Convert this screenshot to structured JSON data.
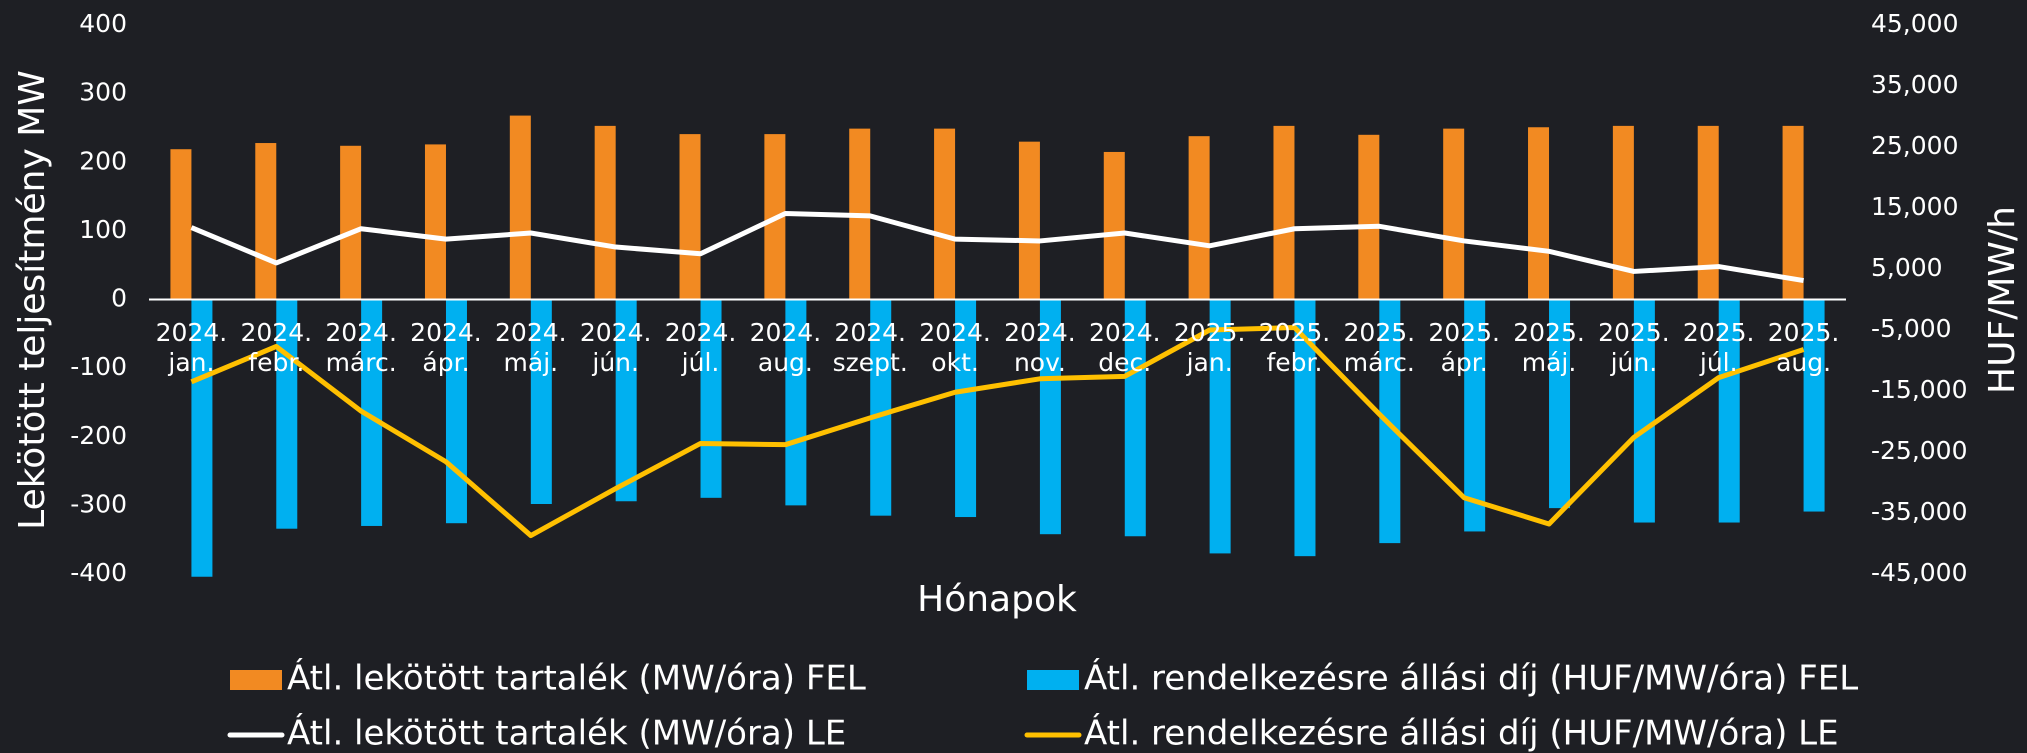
{
  "chart_data": {
    "type": "bar-line",
    "x_label": "Hónapok",
    "y_label": "Lekötött teljesítmény MW",
    "y2_label": "HUF/MW/h",
    "categories": [
      "2024. jan.",
      "2024. febr.",
      "2024. márc.",
      "2024. ápr.",
      "2024. máj.",
      "2024. jún.",
      "2024. júl.",
      "2024. aug.",
      "2024. szept.",
      "2024. okt.",
      "2024. nov.",
      "2024. dec.",
      "2025. jan.",
      "2025. febr.",
      "2025. márc.",
      "2025. ápr.",
      "2025. máj.",
      "2025. jún.",
      "2025. júl.",
      "2025. aug."
    ],
    "ylim": [
      -400,
      400
    ],
    "yticks": [
      -400,
      -300,
      -200,
      -100,
      0,
      100,
      200,
      300,
      400
    ],
    "y2lim": [
      -45000,
      45000
    ],
    "y2ticks": [
      {
        "value": -45000,
        "label": "-45,000"
      },
      {
        "value": -35000,
        "label": "-35,000"
      },
      {
        "value": -25000,
        "label": "-25,000"
      },
      {
        "value": -15000,
        "label": "-15,000"
      },
      {
        "value": -5000,
        "label": "-5,000"
      },
      {
        "value": 5000,
        "label": "5,000"
      },
      {
        "value": 15000,
        "label": "15,000"
      },
      {
        "value": 25000,
        "label": "25,000"
      },
      {
        "value": 35000,
        "label": "35,000"
      },
      {
        "value": 45000,
        "label": "45,000"
      }
    ],
    "series": [
      {
        "name": "Átl. lekötött tartalék (MW/óra) FEL",
        "type": "bar",
        "color": "#f28a22",
        "values": [
          219,
          228,
          224,
          226,
          268,
          253,
          241,
          241,
          249,
          249,
          230,
          215,
          238,
          253,
          240,
          249,
          251,
          253,
          253,
          253
        ]
      },
      {
        "name": "Átl. rendelkezésre állási díj (HUF/MW/óra) FEL",
        "type": "bar",
        "color": "#00b0f0",
        "values": [
          -404,
          -334,
          -330,
          -326,
          -298,
          -294,
          -289,
          -300,
          -315,
          -317,
          -342,
          -345,
          -370,
          -374,
          -355,
          -338,
          -304,
          -325,
          -325,
          -309
        ]
      },
      {
        "name": "Átl. lekötött tartalék (MW/óra) LE",
        "type": "line",
        "axis": "y2",
        "color": "#ffffff",
        "values": [
          11800,
          6000,
          11600,
          9900,
          10900,
          8600,
          7500,
          14100,
          13700,
          9900,
          9600,
          10900,
          8800,
          11600,
          12000,
          9600,
          7900,
          4600,
          5400,
          3100
        ]
      },
      {
        "name": "Átl. rendelkezésre állási díj (HUF/MW/óra) LE",
        "type": "line",
        "axis": "y2",
        "color": "#ffc000",
        "values": [
          -13500,
          -7700,
          -18300,
          -26600,
          -38700,
          -31000,
          -23600,
          -23800,
          -19400,
          -15200,
          -13000,
          -12600,
          -5000,
          -4600,
          -18800,
          -32500,
          -36800,
          -22600,
          -12800,
          -8200
        ]
      }
    ]
  }
}
